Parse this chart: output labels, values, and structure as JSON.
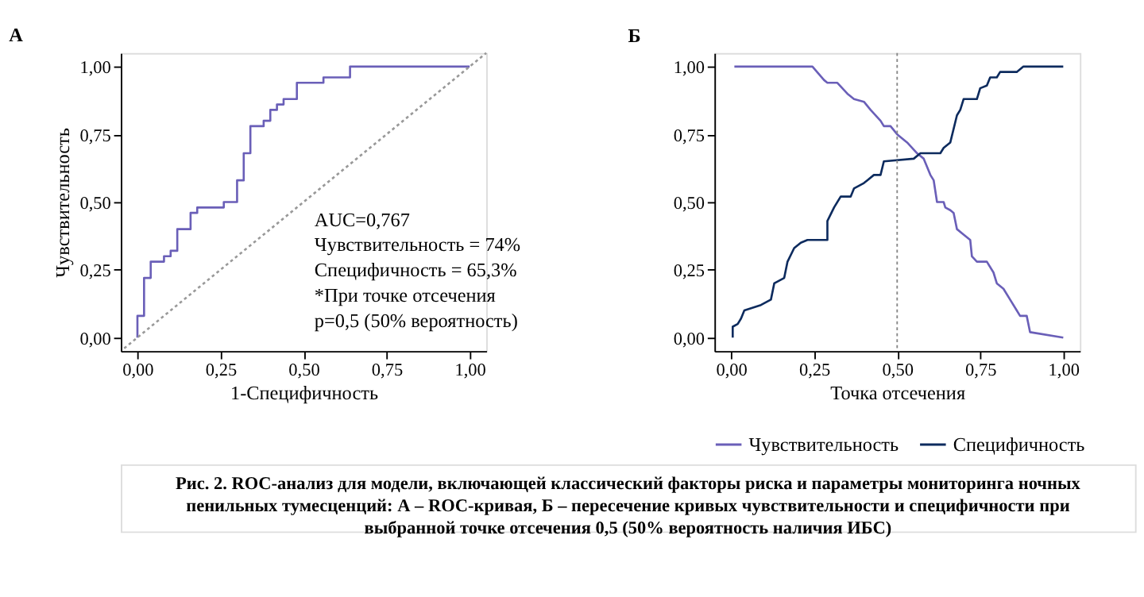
{
  "chart_data": [
    {
      "type": "step",
      "title": "А",
      "xlabel": "1-Специфичность",
      "ylabel": "Чувствительность",
      "xlim": [
        -0.05,
        1.05
      ],
      "ylim": [
        -0.05,
        1.05
      ],
      "xticks": [
        {
          "value": 0,
          "label": "0,00"
        },
        {
          "value": 0.25,
          "label": "0,25"
        },
        {
          "value": 0.5,
          "label": "0,50"
        },
        {
          "value": 0.75,
          "label": "0,75"
        },
        {
          "value": 1,
          "label": "1,00"
        }
      ],
      "yticks": [
        {
          "value": 0,
          "label": "0,00"
        },
        {
          "value": 0.25,
          "label": "0,25"
        },
        {
          "value": 0.5,
          "label": "0,50"
        },
        {
          "value": 0.75,
          "label": "0,75"
        },
        {
          "value": 1,
          "label": "1,00"
        }
      ],
      "grid": false,
      "legend": false,
      "series": [
        {
          "type": "step",
          "color": "#6a5fb8",
          "line_style": "solid",
          "x": [
            0,
            0,
            0.02,
            0.04,
            0.08,
            0.1,
            0.12,
            0.16,
            0.18,
            0.26,
            0.3,
            0.32,
            0.34,
            0.38,
            0.4,
            0.42,
            0.44,
            0.48,
            0.56,
            0.64,
            1.0
          ],
          "values": [
            0,
            0.08,
            0.22,
            0.28,
            0.3,
            0.32,
            0.4,
            0.46,
            0.48,
            0.5,
            0.58,
            0.68,
            0.78,
            0.8,
            0.84,
            0.86,
            0.88,
            0.94,
            0.96,
            1.0,
            1.0
          ]
        },
        {
          "type": "line",
          "color": "#999999",
          "line_style": "dotted",
          "x": [
            -0.04,
            1.05
          ],
          "values": [
            -0.04,
            1.05
          ]
        }
      ],
      "annotations": [
        "AUC=0,767",
        "Чувствительность = 74%",
        "Специфичность = 65,3%",
        "*При точке отсечения",
        "p=0,5 (50% вероятность)"
      ]
    },
    {
      "type": "line",
      "title": "Б",
      "xlabel": "Точка отсечения",
      "xlim": [
        -0.05,
        1.05
      ],
      "ylim": [
        -0.05,
        1.05
      ],
      "xticks": [
        {
          "value": 0,
          "label": "0,00"
        },
        {
          "value": 0.25,
          "label": "0,25"
        },
        {
          "value": 0.5,
          "label": "0,50"
        },
        {
          "value": 0.75,
          "label": "0,75"
        },
        {
          "value": 1,
          "label": "1,00"
        }
      ],
      "yticks": [
        {
          "value": 0,
          "label": "0,00"
        },
        {
          "value": 0.25,
          "label": "0,25"
        },
        {
          "value": 0.5,
          "label": "0,50"
        },
        {
          "value": 0.75,
          "label": "0,75"
        },
        {
          "value": 1,
          "label": "1,00"
        }
      ],
      "grid": false,
      "legend": "bottom",
      "series": [
        {
          "name": "Чувствительность",
          "color": "#6a5fb8",
          "line_style": "solid",
          "x": [
            0.01,
            0.245,
            0.28,
            0.29,
            0.32,
            0.35,
            0.37,
            0.4,
            0.42,
            0.45,
            0.46,
            0.48,
            0.5,
            0.53,
            0.56,
            0.58,
            0.6,
            0.61,
            0.62,
            0.64,
            0.645,
            0.66,
            0.67,
            0.68,
            0.7,
            0.72,
            0.725,
            0.74,
            0.77,
            0.79,
            0.8,
            0.82,
            0.84,
            0.86,
            0.87,
            0.89,
            0.9,
            1.0
          ],
          "values": [
            1.0,
            1.0,
            0.95,
            0.94,
            0.94,
            0.9,
            0.88,
            0.87,
            0.84,
            0.8,
            0.78,
            0.78,
            0.75,
            0.72,
            0.68,
            0.66,
            0.6,
            0.58,
            0.5,
            0.5,
            0.48,
            0.47,
            0.46,
            0.4,
            0.38,
            0.36,
            0.3,
            0.28,
            0.28,
            0.24,
            0.2,
            0.18,
            0.14,
            0.1,
            0.08,
            0.08,
            0.02,
            0.0
          ]
        },
        {
          "name": "Специфичность",
          "color": "#0d2b5e",
          "line_style": "solid",
          "x": [
            0.005,
            0.005,
            0.02,
            0.03,
            0.04,
            0.09,
            0.12,
            0.13,
            0.16,
            0.17,
            0.19,
            0.21,
            0.23,
            0.29,
            0.29,
            0.31,
            0.33,
            0.36,
            0.37,
            0.4,
            0.41,
            0.43,
            0.45,
            0.46,
            0.55,
            0.57,
            0.63,
            0.64,
            0.66,
            0.68,
            0.69,
            0.7,
            0.74,
            0.75,
            0.77,
            0.78,
            0.8,
            0.81,
            0.86,
            0.88,
            1.0
          ],
          "values": [
            0.0,
            0.04,
            0.05,
            0.07,
            0.1,
            0.12,
            0.14,
            0.2,
            0.22,
            0.28,
            0.33,
            0.35,
            0.36,
            0.36,
            0.43,
            0.48,
            0.52,
            0.52,
            0.55,
            0.57,
            0.58,
            0.6,
            0.6,
            0.65,
            0.66,
            0.68,
            0.68,
            0.7,
            0.72,
            0.82,
            0.84,
            0.88,
            0.88,
            0.92,
            0.93,
            0.96,
            0.96,
            0.98,
            0.98,
            1.0,
            1.0
          ]
        }
      ],
      "ref_lines": [
        {
          "axis": "x",
          "value": 0.5,
          "color": "#888888",
          "line_style": "dotted"
        }
      ],
      "annotations": [
        "Рис. 2. ROC-анализ для модели, включающей классический факторы риска и параметры мониторинга ночных пенильных тумесценций: А – ROC-кривая, Б – пересечение кривых чувствительности и специфичности при выбранной точке отсечения 0,5 (50% вероятность наличия ИБС)"
      ]
    }
  ]
}
